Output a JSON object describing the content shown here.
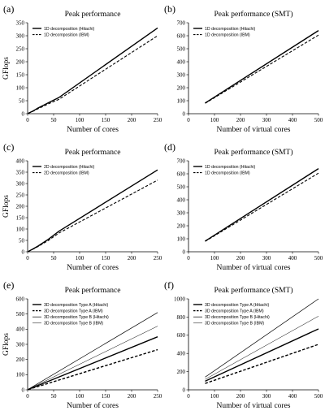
{
  "chart_data": [
    {
      "panel_label": "(a)",
      "type": "line",
      "title": "Peak performance",
      "xlabel": "Number of cores",
      "ylabel": "GFlops",
      "xlim": [
        0,
        250
      ],
      "ylim": [
        0,
        350
      ],
      "xticks": [
        0,
        50,
        100,
        150,
        200,
        250
      ],
      "yticks": [
        0,
        50,
        100,
        150,
        200,
        250,
        300,
        350
      ],
      "legend_position": "top-left",
      "series": [
        {
          "name": "1D decomposition (Hitachi)",
          "style": "solid",
          "width": 1.4,
          "x": [
            1,
            10,
            20,
            40,
            60,
            250
          ],
          "y": [
            1,
            10,
            22,
            42,
            62,
            330
          ]
        },
        {
          "name": "1D decomposition (IBM)",
          "style": "dashed",
          "width": 1.1,
          "x": [
            1,
            10,
            20,
            40,
            60,
            250
          ],
          "y": [
            1,
            9,
            19,
            38,
            55,
            300
          ]
        }
      ]
    },
    {
      "panel_label": "(b)",
      "type": "line",
      "title": "Peak performance (SMT)",
      "xlabel": "Number of virtual cores",
      "ylabel": "",
      "xlim": [
        0,
        500
      ],
      "ylim": [
        0,
        700
      ],
      "xticks": [
        0,
        100,
        200,
        300,
        400,
        500
      ],
      "yticks": [
        0,
        100,
        200,
        300,
        400,
        500,
        600,
        700
      ],
      "legend_position": "top-left",
      "series": [
        {
          "name": "1D decomposition (Hitachi)",
          "style": "solid",
          "width": 1.4,
          "x": [
            64,
            500
          ],
          "y": [
            82,
            640
          ]
        },
        {
          "name": "1D decomposition (IBM)",
          "style": "dashed",
          "width": 1.1,
          "x": [
            64,
            500
          ],
          "y": [
            80,
            605
          ]
        }
      ]
    },
    {
      "panel_label": "(c)",
      "type": "line",
      "title": "Peak performance",
      "xlabel": "Number of cores",
      "ylabel": "GFlops",
      "xlim": [
        0,
        250
      ],
      "ylim": [
        0,
        400
      ],
      "xticks": [
        0,
        50,
        100,
        150,
        200,
        250
      ],
      "yticks": [
        0,
        50,
        100,
        150,
        200,
        250,
        300,
        350,
        400
      ],
      "legend_position": "top-left",
      "series": [
        {
          "name": "2D decomposition (Hitachi)",
          "style": "solid",
          "width": 1.4,
          "x": [
            1,
            10,
            20,
            40,
            60,
            250
          ],
          "y": [
            1,
            12,
            25,
            55,
            90,
            360
          ]
        },
        {
          "name": "2D decomposition (IBM)",
          "style": "dashed",
          "width": 1.1,
          "x": [
            1,
            10,
            20,
            40,
            60,
            250
          ],
          "y": [
            1,
            11,
            23,
            50,
            82,
            315
          ]
        }
      ]
    },
    {
      "panel_label": "(d)",
      "type": "line",
      "title": "Peak performance (SMT)",
      "xlabel": "Number of virtual cores",
      "ylabel": "",
      "xlim": [
        0,
        500
      ],
      "ylim": [
        0,
        700
      ],
      "xticks": [
        0,
        100,
        200,
        300,
        400,
        500
      ],
      "yticks": [
        0,
        100,
        200,
        300,
        400,
        500,
        600,
        700
      ],
      "legend_position": "top-left",
      "series": [
        {
          "name": "1D decomposition (Hitachi)",
          "style": "solid",
          "width": 1.4,
          "x": [
            64,
            500
          ],
          "y": [
            82,
            640
          ]
        },
        {
          "name": "1D decomposition (IBM)",
          "style": "dashed",
          "width": 1.1,
          "x": [
            64,
            500
          ],
          "y": [
            80,
            605
          ]
        }
      ]
    },
    {
      "panel_label": "(e)",
      "type": "line",
      "title": "Peak performance",
      "xlabel": "Number of cores",
      "ylabel": "GFlops",
      "xlim": [
        0,
        250
      ],
      "ylim": [
        0,
        600
      ],
      "xticks": [
        0,
        50,
        100,
        150,
        200,
        250
      ],
      "yticks": [
        0,
        100,
        200,
        300,
        400,
        500,
        600
      ],
      "legend_position": "top-left",
      "series": [
        {
          "name": "3D decomposition Type A (Hitachi)",
          "style": "solid",
          "width": 1.4,
          "x": [
            1,
            250
          ],
          "y": [
            2,
            350
          ]
        },
        {
          "name": "3D decomposition Type A (IBM)",
          "style": "dashed",
          "width": 1.4,
          "x": [
            1,
            250
          ],
          "y": [
            2,
            265
          ]
        },
        {
          "name": "3D decomposition Type B (Hitachi)",
          "style": "solid",
          "width": 0.7,
          "x": [
            1,
            250
          ],
          "y": [
            3,
            510
          ]
        },
        {
          "name": "3D decomposition Type B (IBM)",
          "style": "solid",
          "width": 0.5,
          "x": [
            1,
            250
          ],
          "y": [
            3,
            420
          ]
        }
      ]
    },
    {
      "panel_label": "(f)",
      "type": "line",
      "title": "Peak performance (SMT)",
      "xlabel": "Number of virtual cores",
      "ylabel": "",
      "xlim": [
        0,
        500
      ],
      "ylim": [
        0,
        1000
      ],
      "xticks": [
        0,
        100,
        200,
        300,
        400,
        500
      ],
      "yticks": [
        0,
        200,
        400,
        600,
        800,
        1000
      ],
      "legend_position": "top-left",
      "series": [
        {
          "name": "3D decomposition Type A (Hitachi)",
          "style": "solid",
          "width": 1.4,
          "x": [
            64,
            500
          ],
          "y": [
            95,
            670
          ]
        },
        {
          "name": "3D decomposition Type A (IBM)",
          "style": "dashed",
          "width": 1.4,
          "x": [
            64,
            500
          ],
          "y": [
            70,
            500
          ]
        },
        {
          "name": "3D decomposition Type B (Hitachi)",
          "style": "solid",
          "width": 0.7,
          "x": [
            64,
            500
          ],
          "y": [
            140,
            1000
          ]
        },
        {
          "name": "3D decomposition Type B (IBM)",
          "style": "solid",
          "width": 0.5,
          "x": [
            64,
            500
          ],
          "y": [
            115,
            810
          ]
        }
      ]
    }
  ]
}
